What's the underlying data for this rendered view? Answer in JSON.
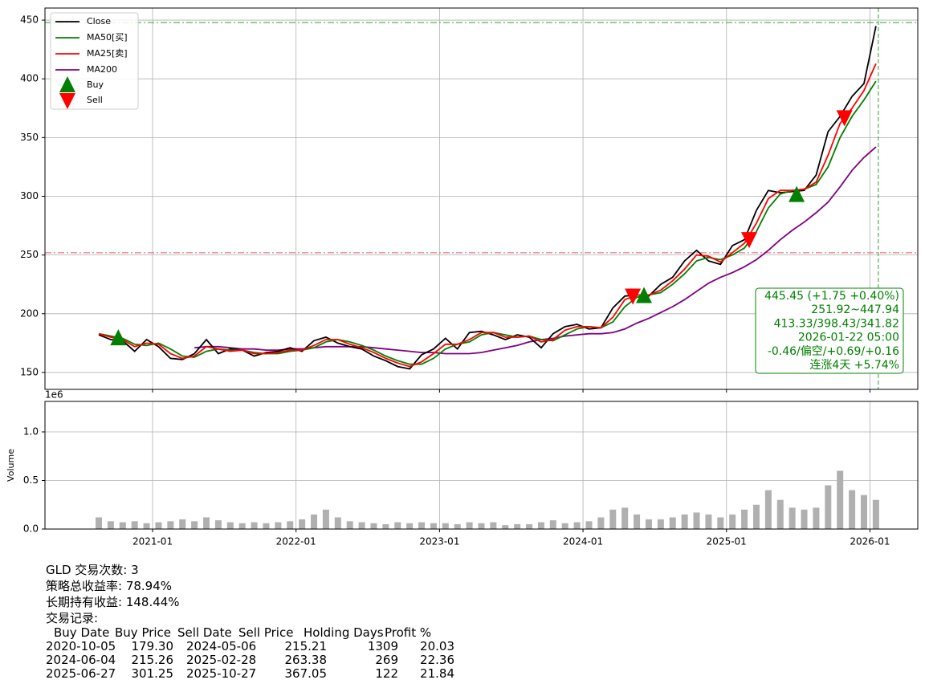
{
  "chart_data": [
    {
      "type": "line",
      "x": [
        "2020-08",
        "2020-09",
        "2020-10",
        "2020-11",
        "2020-12",
        "2021-01",
        "2021-02",
        "2021-03",
        "2021-04",
        "2021-05",
        "2021-06",
        "2021-07",
        "2021-08",
        "2021-09",
        "2021-10",
        "2021-11",
        "2021-12",
        "2022-01",
        "2022-02",
        "2022-03",
        "2022-04",
        "2022-05",
        "2022-06",
        "2022-07",
        "2022-08",
        "2022-09",
        "2022-10",
        "2022-11",
        "2022-12",
        "2023-01",
        "2023-02",
        "2023-03",
        "2023-04",
        "2023-05",
        "2023-06",
        "2023-07",
        "2023-08",
        "2023-09",
        "2023-10",
        "2023-11",
        "2023-12",
        "2024-01",
        "2024-02",
        "2024-03",
        "2024-04",
        "2024-05",
        "2024-06",
        "2024-07",
        "2024-08",
        "2024-09",
        "2024-10",
        "2024-11",
        "2024-12",
        "2025-01",
        "2025-02",
        "2025-03",
        "2025-04",
        "2025-05",
        "2025-06",
        "2025-07",
        "2025-08",
        "2025-09",
        "2025-10",
        "2025-11",
        "2025-12",
        "2026-01"
      ],
      "series": [
        {
          "name": "Close",
          "color": "#000000",
          "values": [
            182,
            178,
            177,
            168,
            178,
            172,
            162,
            161,
            166,
            178,
            166,
            170,
            169,
            164,
            167,
            168,
            171,
            168,
            177,
            180,
            175,
            172,
            170,
            164,
            160,
            155,
            153,
            165,
            170,
            179,
            170,
            184,
            185,
            182,
            178,
            182,
            180,
            171,
            183,
            189,
            191,
            187,
            188,
            205,
            215,
            216,
            215,
            225,
            231,
            245,
            254,
            245,
            242,
            258,
            263,
            288,
            305,
            303,
            304,
            305,
            318,
            355,
            368,
            385,
            396,
            445
          ]
        },
        {
          "name": "MA50[买]",
          "color": "#008000",
          "values": [
            183,
            181,
            179,
            174,
            173,
            175,
            170,
            164,
            163,
            168,
            170,
            169,
            169,
            167,
            166,
            166,
            168,
            169,
            171,
            176,
            178,
            176,
            173,
            169,
            164,
            160,
            157,
            157,
            162,
            170,
            174,
            176,
            182,
            184,
            182,
            180,
            181,
            178,
            177,
            182,
            187,
            189,
            188,
            193,
            206,
            214,
            216,
            218,
            225,
            234,
            245,
            248,
            246,
            250,
            256,
            270,
            290,
            302,
            305,
            306,
            310,
            325,
            350,
            368,
            382,
            398
          ]
        },
        {
          "name": "MA25[卖]",
          "color": "#ff0000",
          "values": [
            183,
            180,
            178,
            172,
            175,
            174,
            166,
            162,
            164,
            172,
            170,
            168,
            169,
            166,
            166,
            167,
            169,
            169,
            173,
            178,
            178,
            174,
            171,
            167,
            162,
            158,
            155,
            159,
            166,
            174,
            174,
            178,
            184,
            184,
            180,
            180,
            181,
            176,
            178,
            186,
            189,
            189,
            188,
            197,
            212,
            216,
            216,
            220,
            228,
            238,
            250,
            249,
            244,
            252,
            260,
            277,
            298,
            305,
            305,
            306,
            312,
            335,
            362,
            375,
            390,
            413
          ]
        },
        {
          "name": "MA200",
          "color": "#800080",
          "values": [
            null,
            null,
            null,
            null,
            null,
            null,
            null,
            null,
            171,
            172,
            172,
            171,
            170,
            170,
            169,
            169,
            170,
            170,
            171,
            172,
            172,
            172,
            172,
            171,
            170,
            169,
            168,
            167,
            167,
            166,
            166,
            166,
            167,
            169,
            171,
            173,
            176,
            178,
            179,
            181,
            182,
            183,
            183,
            184,
            187,
            192,
            196,
            201,
            206,
            212,
            219,
            226,
            231,
            235,
            240,
            246,
            254,
            263,
            271,
            278,
            286,
            295,
            308,
            322,
            333,
            342
          ]
        }
      ],
      "markers": [
        {
          "name": "Buy",
          "color": "#008000"
        },
        {
          "name": "Sell",
          "color": "#ff0000"
        }
      ],
      "xlim": [
        "2020-04",
        "2026-05"
      ],
      "ylim": [
        135.6,
        460.3
      ],
      "yticks": [
        150,
        200,
        250,
        300,
        350,
        400,
        450
      ],
      "grid": true,
      "legend": "upper left",
      "hlines": [
        {
          "value": 447.94,
          "color": "#2ca02c"
        },
        {
          "value": 251.92,
          "color": "#e06060"
        }
      ],
      "annotation": [
        "445.45 (+1.75 +0.40%)",
        "251.92~447.94",
        "413.33/398.43/341.82",
        "2026-01-22 05:00",
        "-0.46/偏空/+0.69/+0.16",
        "连涨4天 +5.74%"
      ],
      "annotation_color": "#008000"
    },
    {
      "type": "bar",
      "ylabel": "Volume",
      "offset_label": "1e6",
      "color": "#b0b0b0",
      "x": [
        "2020-08",
        "2020-09",
        "2020-10",
        "2020-11",
        "2020-12",
        "2021-01",
        "2021-02",
        "2021-03",
        "2021-04",
        "2021-05",
        "2021-06",
        "2021-07",
        "2021-08",
        "2021-09",
        "2021-10",
        "2021-11",
        "2021-12",
        "2022-01",
        "2022-02",
        "2022-03",
        "2022-04",
        "2022-05",
        "2022-06",
        "2022-07",
        "2022-08",
        "2022-09",
        "2022-10",
        "2022-11",
        "2022-12",
        "2023-01",
        "2023-02",
        "2023-03",
        "2023-04",
        "2023-05",
        "2023-06",
        "2023-07",
        "2023-08",
        "2023-09",
        "2023-10",
        "2023-11",
        "2023-12",
        "2024-01",
        "2024-02",
        "2024-03",
        "2024-04",
        "2024-05",
        "2024-06",
        "2024-07",
        "2024-08",
        "2024-09",
        "2024-10",
        "2024-11",
        "2024-12",
        "2025-01",
        "2025-02",
        "2025-03",
        "2025-04",
        "2025-05",
        "2025-06",
        "2025-07",
        "2025-08",
        "2025-09",
        "2025-10",
        "2025-11",
        "2025-12",
        "2026-01"
      ],
      "values": [
        0.12,
        0.08,
        0.07,
        0.08,
        0.06,
        0.07,
        0.08,
        0.1,
        0.08,
        0.12,
        0.09,
        0.07,
        0.06,
        0.07,
        0.06,
        0.07,
        0.08,
        0.1,
        0.15,
        0.2,
        0.12,
        0.08,
        0.07,
        0.06,
        0.05,
        0.07,
        0.06,
        0.07,
        0.06,
        0.06,
        0.05,
        0.07,
        0.06,
        0.07,
        0.04,
        0.05,
        0.05,
        0.07,
        0.09,
        0.06,
        0.07,
        0.08,
        0.12,
        0.2,
        0.22,
        0.15,
        0.1,
        0.1,
        0.12,
        0.15,
        0.17,
        0.15,
        0.12,
        0.15,
        0.2,
        0.25,
        0.4,
        0.3,
        0.22,
        0.2,
        0.22,
        0.45,
        0.6,
        0.4,
        0.35,
        0.3
      ],
      "xlim": [
        "2020-04",
        "2026-05"
      ],
      "xticks": [
        "2021-01",
        "2022-01",
        "2023-01",
        "2024-01",
        "2025-01",
        "2026-01"
      ],
      "ylim": [
        0,
        1.314
      ],
      "yticks": [
        {
          "value": 0,
          "label": "0.0"
        },
        0.5,
        {
          "value": 1,
          "label": "1.0"
        }
      ],
      "grid": true
    }
  ],
  "report": {
    "lines": [
      "GLD 交易次数: 3",
      "策略总收益率: 78.94%",
      "长期持有收益: 148.44%",
      "交易记录:"
    ],
    "table": {
      "columns": [
        "Buy Date",
        "Buy Price",
        "Sell Date",
        "Sell Price",
        "Holding Days",
        "Profit %"
      ],
      "rows": [
        [
          "2020-10-05",
          "179.30",
          "2024-05-06",
          "215.21",
          "1309",
          "20.03"
        ],
        [
          "2024-06-04",
          "215.26",
          "2025-02-28",
          "263.38",
          "269",
          "22.36"
        ],
        [
          "2025-06-27",
          "301.25",
          "2025-10-27",
          "367.05",
          "122",
          "21.84"
        ]
      ]
    }
  }
}
